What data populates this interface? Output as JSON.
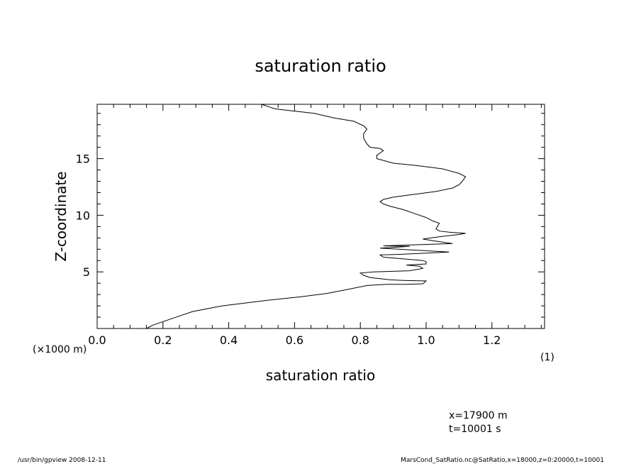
{
  "chart_data": {
    "type": "line",
    "title": "saturation ratio",
    "xlabel": "saturation ratio",
    "xunit": "(1)",
    "ylabel": "Z-coordinate",
    "yunit": "(×1000 m)",
    "xlim": [
      0.0,
      1.36
    ],
    "ylim": [
      0,
      19.8
    ],
    "xticks": [
      "0.0",
      "0.2",
      "0.4",
      "0.6",
      "0.8",
      "1.0",
      "1.2"
    ],
    "yticks": [
      "5",
      "10",
      "15"
    ],
    "grid": false,
    "series": [
      {
        "points": [
          [
            0.15,
            0.0
          ],
          [
            0.17,
            0.3
          ],
          [
            0.22,
            0.8
          ],
          [
            0.29,
            1.5
          ],
          [
            0.38,
            2.0
          ],
          [
            0.52,
            2.5
          ],
          [
            0.62,
            2.8
          ],
          [
            0.7,
            3.1
          ],
          [
            0.77,
            3.5
          ],
          [
            0.82,
            3.8
          ],
          [
            0.88,
            3.9
          ],
          [
            0.94,
            3.9
          ],
          [
            0.99,
            3.95
          ],
          [
            1.0,
            4.2
          ],
          [
            0.93,
            4.25
          ],
          [
            0.89,
            4.3
          ],
          [
            0.86,
            4.4
          ],
          [
            0.83,
            4.5
          ],
          [
            0.81,
            4.7
          ],
          [
            0.8,
            4.9
          ],
          [
            0.84,
            5.0
          ],
          [
            0.95,
            5.1
          ],
          [
            0.99,
            5.3
          ],
          [
            0.98,
            5.5
          ],
          [
            0.94,
            5.6
          ],
          [
            1.0,
            5.7
          ],
          [
            1.0,
            5.9
          ],
          [
            0.99,
            6.0
          ],
          [
            0.95,
            6.1
          ],
          [
            0.87,
            6.3
          ],
          [
            0.86,
            6.5
          ],
          [
            0.92,
            6.55
          ],
          [
            1.07,
            6.75
          ],
          [
            0.86,
            7.1
          ],
          [
            0.95,
            7.25
          ],
          [
            0.87,
            7.3
          ],
          [
            1.08,
            7.5
          ],
          [
            1.02,
            7.75
          ],
          [
            0.99,
            7.9
          ],
          [
            1.04,
            8.1
          ],
          [
            1.1,
            8.3
          ],
          [
            1.12,
            8.4
          ],
          [
            1.07,
            8.5
          ],
          [
            1.04,
            8.6
          ],
          [
            1.03,
            8.8
          ],
          [
            1.04,
            9.3
          ],
          [
            1.02,
            9.5
          ],
          [
            1.0,
            9.8
          ],
          [
            0.97,
            10.1
          ],
          [
            0.93,
            10.5
          ],
          [
            0.89,
            10.8
          ],
          [
            0.87,
            11.0
          ],
          [
            0.86,
            11.2
          ],
          [
            0.87,
            11.4
          ],
          [
            0.9,
            11.6
          ],
          [
            0.95,
            11.8
          ],
          [
            1.03,
            12.1
          ],
          [
            1.08,
            12.4
          ],
          [
            1.1,
            12.7
          ],
          [
            1.11,
            13.0
          ],
          [
            1.12,
            13.4
          ],
          [
            1.1,
            13.7
          ],
          [
            1.05,
            14.1
          ],
          [
            0.97,
            14.4
          ],
          [
            0.9,
            14.6
          ],
          [
            0.85,
            15.0
          ],
          [
            0.85,
            15.3
          ],
          [
            0.86,
            15.5
          ],
          [
            0.87,
            15.7
          ],
          [
            0.86,
            15.9
          ],
          [
            0.83,
            16.0
          ],
          [
            0.82,
            16.3
          ],
          [
            0.81,
            16.8
          ],
          [
            0.81,
            17.2
          ],
          [
            0.82,
            17.6
          ],
          [
            0.81,
            17.9
          ],
          [
            0.78,
            18.3
          ],
          [
            0.72,
            18.6
          ],
          [
            0.66,
            19.0
          ],
          [
            0.6,
            19.2
          ],
          [
            0.54,
            19.4
          ],
          [
            0.52,
            19.6
          ],
          [
            0.5,
            19.8
          ]
        ]
      }
    ]
  },
  "annotations": {
    "x_position": "x=17900 m",
    "time": "t=10001 s"
  },
  "footer": {
    "left": "/usr/bin/gpview   2008-12-11",
    "right": "MarsCond_SatRatio.nc@SatRatio,x=18000,z=0:20000,t=10001"
  }
}
